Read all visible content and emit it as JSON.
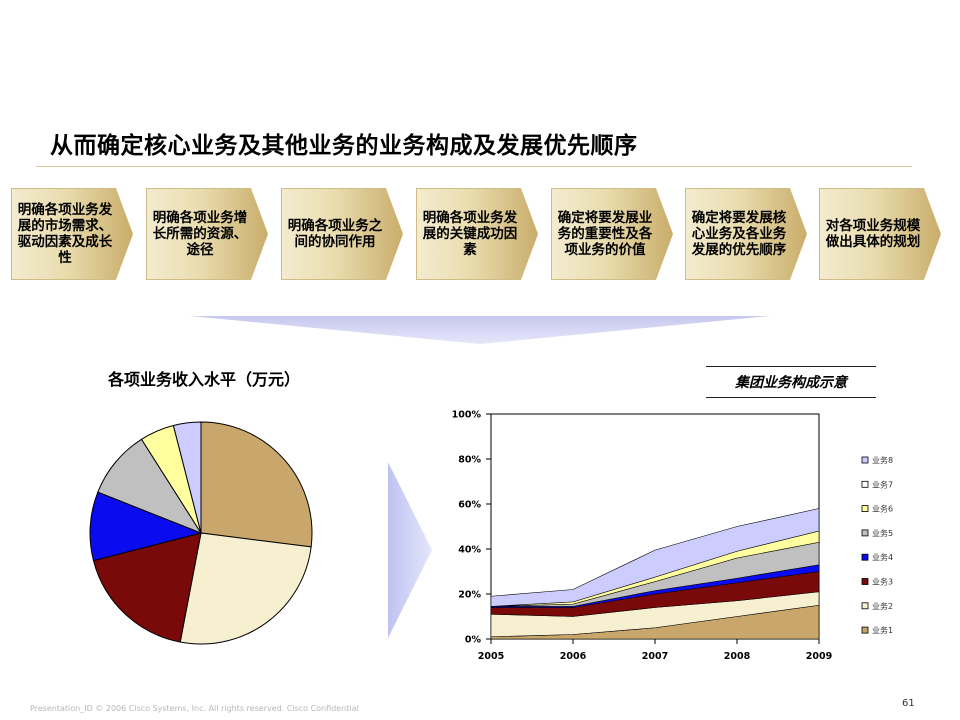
{
  "slide": {
    "title": "从而确定核心业务及其他业务的业务构成及发展优先顺序",
    "page_number": "61",
    "footer": "Presentation_ID        © 2006 Cisco Systems, Inc. All rights reserved.        Cisco Confidential"
  },
  "steps": [
    "明确各项业务发展的市场需求、驱动因素及成长性",
    "明确各项业务增长所需的资源、途径",
    "明确各项业务之间的协同作用",
    "明确各项业务发展的关键成功因素",
    "确定将要发展业务的重要性及各项业务的价值",
    "确定将要发展核心业务及各业务发展的优先顺序",
    "对各项业务规模做出具体的规划"
  ],
  "colors": {
    "step_light": "#f4ecd0",
    "step_dark": "#c9ad6a",
    "funnel": "#c8c8f0",
    "arrow": "#c8cbf2"
  },
  "chart_data": [
    {
      "type": "pie",
      "title": "各项业务收入水平（万元）",
      "slices": [
        {
          "value": 27,
          "color": "#c9a66b"
        },
        {
          "value": 26,
          "color": "#f7f0d0"
        },
        {
          "value": 18,
          "color": "#7a0a0a"
        },
        {
          "value": 10,
          "color": "#0b0bf0"
        },
        {
          "value": 10,
          "color": "#c0c0c0"
        },
        {
          "value": 5,
          "color": "#ffffa0"
        },
        {
          "value": 4,
          "color": "#ccccff"
        }
      ]
    },
    {
      "type": "area",
      "title": "集团业务构成示意",
      "x": [
        "2005",
        "2006",
        "2007",
        "2008",
        "2009"
      ],
      "ylim": [
        0,
        100
      ],
      "yticks": [
        "0%",
        "20%",
        "40%",
        "60%",
        "80%",
        "100%"
      ],
      "stacked": true,
      "legend_position": "right",
      "series": [
        {
          "name": "业务1",
          "color": "#c9a66b",
          "values": [
            1,
            2,
            5,
            10,
            15
          ]
        },
        {
          "name": "业务2",
          "color": "#f7f0d0",
          "values": [
            10,
            8,
            9,
            7,
            6
          ]
        },
        {
          "name": "业务3",
          "color": "#7a0a0a",
          "values": [
            3,
            4,
            6,
            8,
            9
          ]
        },
        {
          "name": "业务4",
          "color": "#0b0bf0",
          "values": [
            0.5,
            0.5,
            1.5,
            2,
            3
          ]
        },
        {
          "name": "业务5",
          "color": "#c0c0c0",
          "values": [
            0,
            1,
            4,
            9,
            10
          ]
        },
        {
          "name": "业务6",
          "color": "#ffffa0",
          "values": [
            0,
            1,
            2,
            3,
            5
          ]
        },
        {
          "name": "业务7",
          "color": "#ffffff",
          "values": [
            0,
            0,
            0,
            0,
            0
          ]
        },
        {
          "name": "业务8",
          "color": "#ccccff",
          "values": [
            4.5,
            5.5,
            12,
            11,
            10
          ]
        }
      ]
    }
  ]
}
